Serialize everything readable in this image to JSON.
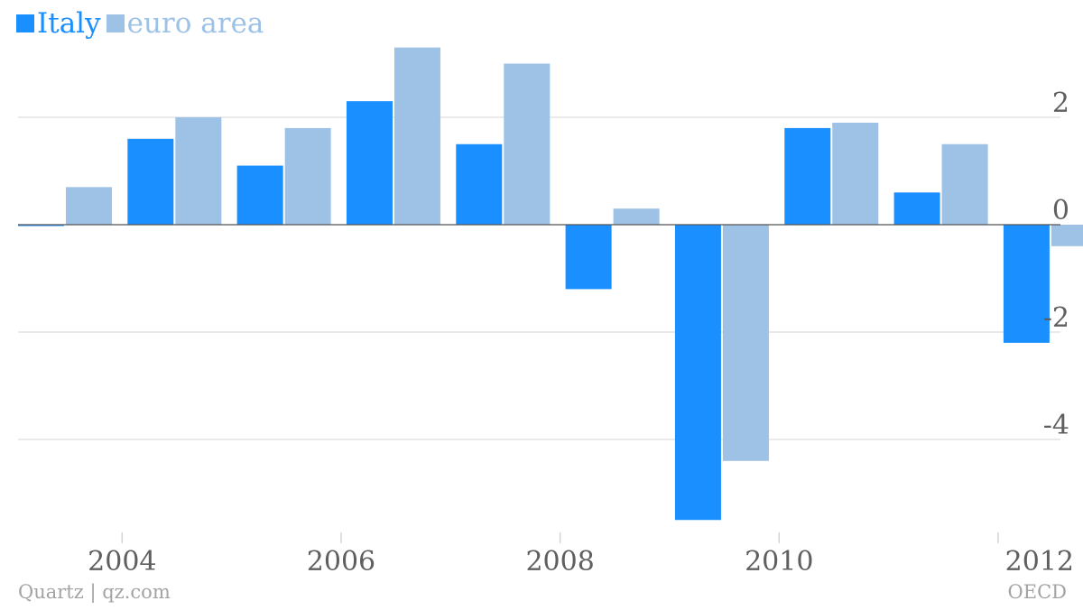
{
  "chart_data": {
    "type": "bar",
    "categories": [
      "2003",
      "2004",
      "2005",
      "2006",
      "2007",
      "2008",
      "2009",
      "2010",
      "2011",
      "2012"
    ],
    "series": [
      {
        "name": "Italy",
        "values": [
          0.0,
          1.6,
          1.1,
          2.3,
          1.5,
          -1.2,
          -5.5,
          1.8,
          0.6,
          -2.2
        ]
      },
      {
        "name": "euro area",
        "values": [
          0.7,
          2.0,
          1.8,
          3.3,
          3.0,
          0.3,
          -4.4,
          1.9,
          1.5,
          -0.4
        ]
      }
    ],
    "x_tick_labels": [
      "2004",
      "2006",
      "2008",
      "2010",
      "2012"
    ],
    "y_ticks": [
      2,
      0,
      -2,
      -4
    ],
    "y_tick_labels": [
      "2",
      "0",
      "-2",
      "-4"
    ],
    "ylim": [
      -5.6,
      3.6
    ],
    "title": "",
    "xlabel": "",
    "ylabel": "",
    "grid": true,
    "legend": "top-left"
  },
  "legend": {
    "italy_label": "Italy",
    "euro_label": "euro area"
  },
  "colors": {
    "italy": "#1a8fff",
    "euro": "#9dc2e6",
    "grid": "#e3e3e3",
    "axis_text": "#5f5f5f",
    "zero_line": "#555555"
  },
  "footer": {
    "credit": "Quartz | qz.com",
    "source": "OECD"
  }
}
